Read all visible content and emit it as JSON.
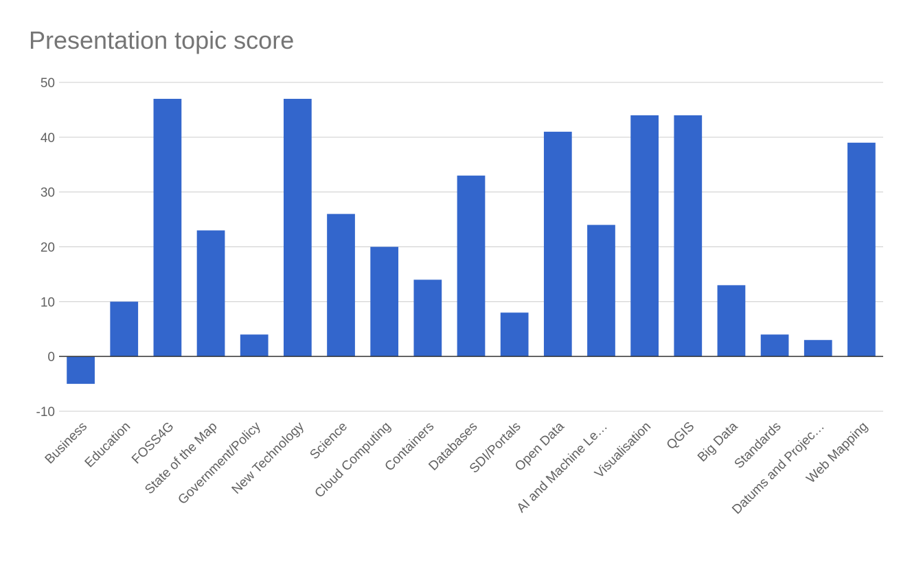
{
  "chart_data": {
    "type": "bar",
    "title": "Presentation topic score",
    "xlabel": "",
    "ylabel": "",
    "ylim": [
      -10,
      50
    ],
    "yticks": [
      -10,
      0,
      10,
      20,
      30,
      40,
      50
    ],
    "grid": true,
    "legend": "none",
    "bar_color": "#3366cc",
    "categories": [
      "Business",
      "Education",
      "FOSS4G",
      "State of the Map",
      "Government/Policy",
      "New Technology",
      "Science",
      "Cloud Computing",
      "Containers",
      "Databases",
      "SDI/Portals",
      "Open Data",
      "AI and Machine Le…",
      "Visualisation",
      "QGIS",
      "Big Data",
      "Standards",
      "Datums and Projec…",
      "Web Mapping"
    ],
    "values": [
      -5,
      10,
      47,
      23,
      4,
      47,
      26,
      20,
      14,
      33,
      8,
      41,
      24,
      44,
      44,
      13,
      4,
      3,
      39
    ]
  }
}
